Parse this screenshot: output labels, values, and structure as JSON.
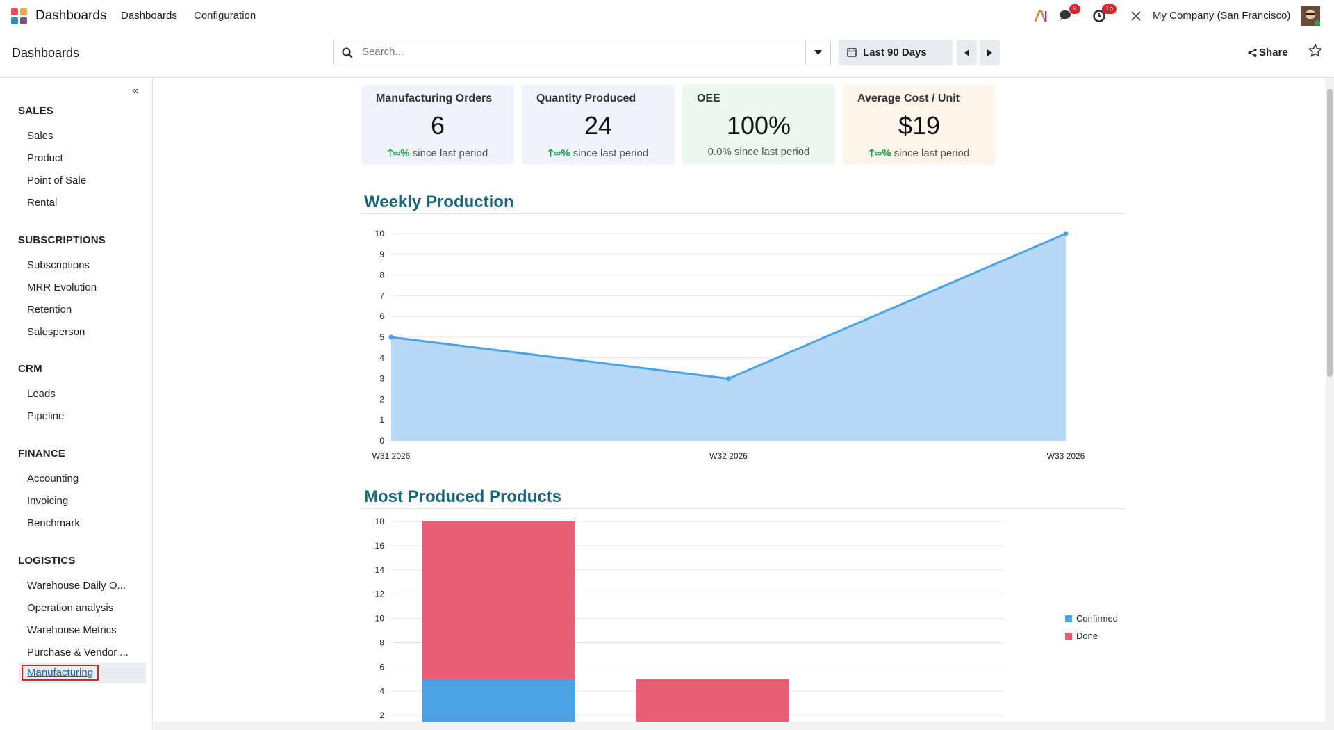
{
  "topbar": {
    "app_name": "Dashboards",
    "menu": [
      "Dashboards",
      "Configuration"
    ],
    "messages_count": "9",
    "activities_count": "15",
    "company": "My Company (San Francisco)"
  },
  "control": {
    "breadcrumb": "Dashboards",
    "search_placeholder": "Search...",
    "date_range": "Last 90 Days",
    "share_label": "Share"
  },
  "sidebar": {
    "sections": [
      {
        "title": "SALES",
        "items": [
          "Sales",
          "Product",
          "Point of Sale",
          "Rental"
        ]
      },
      {
        "title": "SUBSCRIPTIONS",
        "items": [
          "Subscriptions",
          "MRR Evolution",
          "Retention",
          "Salesperson"
        ]
      },
      {
        "title": "CRM",
        "items": [
          "Leads",
          "Pipeline"
        ]
      },
      {
        "title": "FINANCE",
        "items": [
          "Accounting",
          "Invoicing",
          "Benchmark"
        ]
      },
      {
        "title": "LOGISTICS",
        "items": [
          "Warehouse Daily O...",
          "Operation analysis",
          "Warehouse Metrics",
          "Purchase & Vendor ...",
          "Manufacturing"
        ]
      }
    ],
    "active_item": "Manufacturing"
  },
  "kpis": [
    {
      "title": "Manufacturing Orders",
      "value": "6",
      "delta": "∞%",
      "delta_text": "since last period",
      "trend": "up",
      "bg": "#eef4fb"
    },
    {
      "title": "Quantity Produced",
      "value": "24",
      "delta": "∞%",
      "delta_text": "since last period",
      "trend": "up",
      "bg": "#eef4fb"
    },
    {
      "title": "OEE",
      "value": "100%",
      "delta": "0.0%",
      "delta_text": "since last period",
      "trend": "flat",
      "bg": "#ecf9f1"
    },
    {
      "title": "Average Cost / Unit",
      "value": "$19",
      "delta": "∞%",
      "delta_text": "since last period",
      "trend": "up",
      "bg": "#fdf4ea"
    }
  ],
  "sections": {
    "weekly_title": "Weekly Production",
    "products_title": "Most Produced Products"
  },
  "chart_data": [
    {
      "type": "area",
      "x": [
        "W31 2026",
        "W32 2026",
        "W33 2026"
      ],
      "series": [
        {
          "values": [
            5,
            3,
            10
          ],
          "color": "#4ba3e6"
        }
      ],
      "ylim": [
        0,
        10
      ],
      "yticks": [
        "0",
        "1",
        "2",
        "3",
        "4",
        "5",
        "6",
        "7",
        "8",
        "9",
        "10"
      ],
      "grid": true
    },
    {
      "type": "bar",
      "stacked": true,
      "categories": [
        "",
        ""
      ],
      "series": [
        {
          "name": "Confirmed",
          "values": [
            5,
            0
          ],
          "color": "#4ba3e6"
        },
        {
          "name": "Done",
          "values": [
            13,
            5
          ],
          "color": "#e85e72"
        }
      ],
      "ylim": [
        0,
        18
      ],
      "yticks": [
        "2",
        "4",
        "6",
        "8",
        "10",
        "12",
        "14",
        "16",
        "18"
      ],
      "legend": "right",
      "grid": true
    }
  ]
}
